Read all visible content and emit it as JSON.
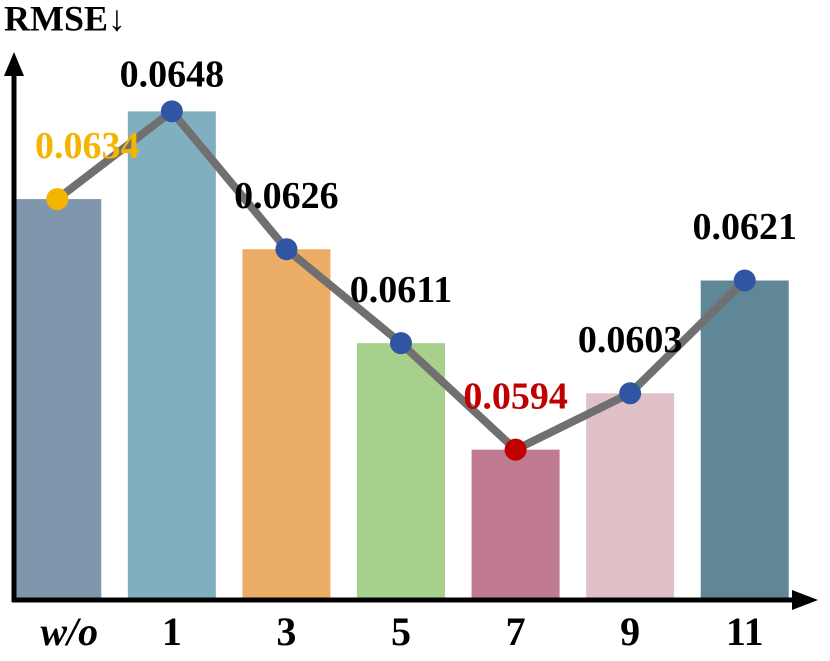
{
  "chart_data": {
    "type": "bar_line",
    "y_label": "RMSE↓",
    "categories": [
      "w/o",
      "1",
      "3",
      "5",
      "7",
      "9",
      "11"
    ],
    "values": [
      0.0634,
      0.0648,
      0.0626,
      0.0611,
      0.0594,
      0.0603,
      0.0621
    ],
    "bar_colors": [
      "#8096ad",
      "#80b0c0",
      "#ecae67",
      "#a6d08c",
      "#c07a92",
      "#e1c1c8",
      "#5f8795"
    ],
    "line_color": "#707070",
    "marker_colors": [
      "#f5b400",
      "#2f55a3",
      "#2f55a3",
      "#2f55a3",
      "#c00000",
      "#2f55a3",
      "#2f55a3"
    ],
    "label_colors": [
      "#f5b400",
      "#000000",
      "#000000",
      "#000000",
      "#c00000",
      "#000000",
      "#000000"
    ],
    "ylim": [
      0.057,
      0.0657
    ]
  }
}
